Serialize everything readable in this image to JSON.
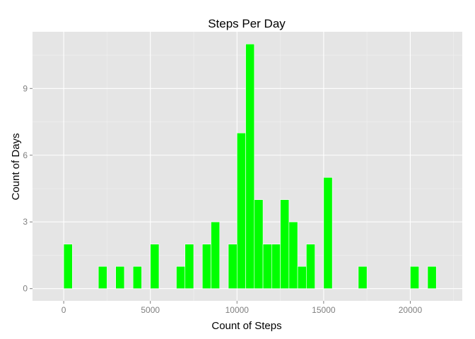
{
  "chart_data": {
    "type": "bar",
    "title": "Steps Per Day",
    "xlabel": "Count of Steps",
    "ylabel": "Count of Days",
    "binwidth": 500,
    "xlim": [
      -1800,
      23000
    ],
    "ylim": [
      -0.55,
      11.55
    ],
    "x_ticks": [
      0,
      5000,
      10000,
      15000,
      20000
    ],
    "x_tick_labels": [
      "0",
      "5000",
      "10000",
      "15000",
      "20000"
    ],
    "y_ticks": [
      0,
      3,
      6,
      9
    ],
    "y_tick_labels": [
      "0",
      "3",
      "6",
      "9"
    ],
    "grid": true,
    "bar_color": "#00ff00",
    "bar_outline": "#ffffff",
    "panel_color": "#e5e5e5",
    "bins": [
      {
        "x": 250,
        "count": 2
      },
      {
        "x": 2250,
        "count": 1
      },
      {
        "x": 3250,
        "count": 1
      },
      {
        "x": 4250,
        "count": 1
      },
      {
        "x": 5250,
        "count": 2
      },
      {
        "x": 6750,
        "count": 1
      },
      {
        "x": 7250,
        "count": 2
      },
      {
        "x": 8250,
        "count": 2
      },
      {
        "x": 8750,
        "count": 3
      },
      {
        "x": 9750,
        "count": 2
      },
      {
        "x": 10250,
        "count": 7
      },
      {
        "x": 10750,
        "count": 11
      },
      {
        "x": 11250,
        "count": 4
      },
      {
        "x": 11750,
        "count": 2
      },
      {
        "x": 12250,
        "count": 2
      },
      {
        "x": 12750,
        "count": 4
      },
      {
        "x": 13250,
        "count": 3
      },
      {
        "x": 13750,
        "count": 1
      },
      {
        "x": 14250,
        "count": 2
      },
      {
        "x": 15250,
        "count": 5
      },
      {
        "x": 17250,
        "count": 1
      },
      {
        "x": 20250,
        "count": 1
      },
      {
        "x": 21250,
        "count": 1
      }
    ]
  }
}
